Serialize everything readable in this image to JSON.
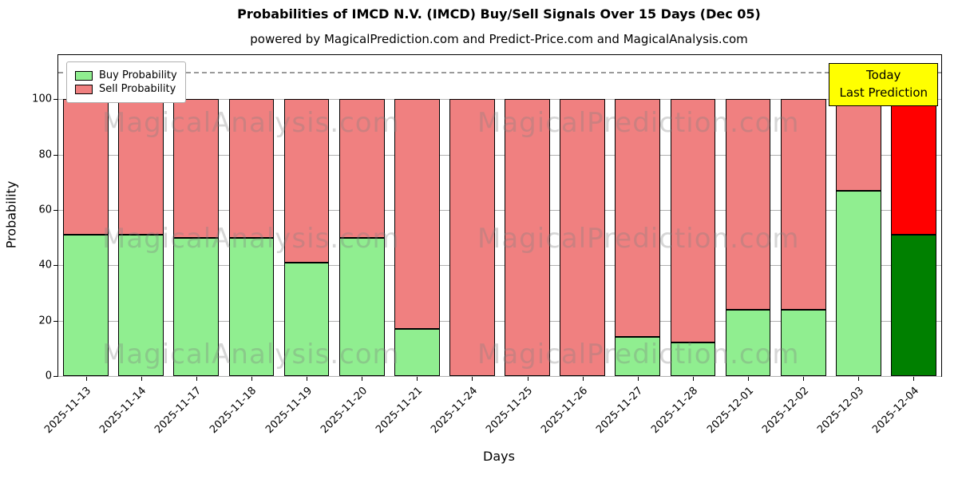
{
  "chart_data": {
    "type": "bar",
    "stacked": true,
    "title": "Probabilities of IMCD N.V. (IMCD) Buy/Sell Signals Over 15 Days (Dec 05)",
    "subtitle": "powered by MagicalPrediction.com and Predict-Price.com and MagicalAnalysis.com",
    "xlabel": "Days",
    "ylabel": "Probability",
    "categories": [
      "2025-11-13",
      "2025-11-14",
      "2025-11-17",
      "2025-11-18",
      "2025-11-19",
      "2025-11-20",
      "2025-11-21",
      "2025-11-24",
      "2025-11-25",
      "2025-11-26",
      "2025-11-27",
      "2025-11-28",
      "2025-12-01",
      "2025-12-02",
      "2025-12-03",
      "2025-12-04"
    ],
    "series": [
      {
        "name": "Buy Probability",
        "color": "#90EE90",
        "values": [
          51,
          51,
          50,
          50,
          41,
          50,
          17,
          0,
          0,
          0,
          14,
          12,
          24,
          24,
          67,
          51
        ]
      },
      {
        "name": "Sell Probability",
        "color": "#F08080",
        "values": [
          49,
          49,
          50,
          50,
          59,
          50,
          83,
          100,
          100,
          100,
          86,
          88,
          76,
          76,
          33,
          49
        ]
      }
    ],
    "today_bar_colors": {
      "buy": "#008000",
      "sell": "#FF0000"
    },
    "yticks": [
      0,
      20,
      40,
      60,
      80,
      100
    ],
    "ylim": [
      0,
      116
    ],
    "dashed_line_y": 110,
    "grid": true,
    "legend_position": "upper-left"
  },
  "annotation": {
    "line1": "Today",
    "line2": "Last Prediction"
  },
  "watermarks": {
    "left_text": "MagicalAnalysis.com",
    "right_text": "MagicalPrediction.com"
  }
}
